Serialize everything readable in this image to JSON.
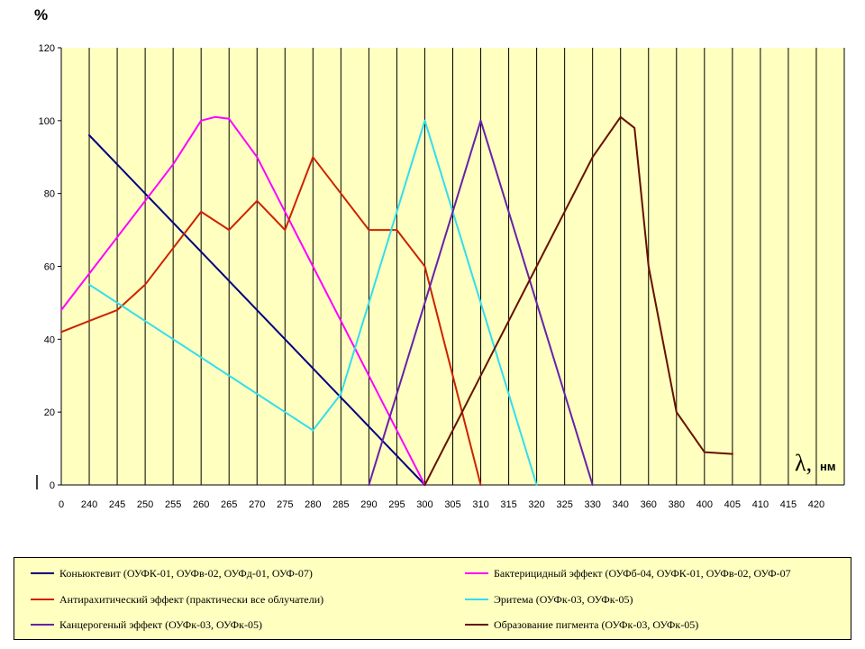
{
  "chart_data": {
    "type": "line",
    "ylabel": "%",
    "xlabel_symbol": "λ,",
    "xlabel_unit": "нм",
    "ylim": [
      0,
      120
    ],
    "yticks": [
      "0",
      "20",
      "40",
      "60",
      "80",
      "100",
      "120"
    ],
    "categories": [
      "0",
      "240",
      "245",
      "250",
      "255",
      "260",
      "265",
      "270",
      "275",
      "280",
      "285",
      "290",
      "295",
      "300",
      "305",
      "310",
      "315",
      "320",
      "325",
      "330",
      "340",
      "360",
      "380",
      "400",
      "405",
      "410",
      "415",
      "420"
    ],
    "grid": "vertical",
    "legend_position": "bottom",
    "background": "#ffffc0",
    "series": [
      {
        "name": "Коньюктевит (ОУФК-01, ОУФв-02, ОУФд-01, ОУФ-07)",
        "color": "#000080",
        "points": [
          [
            1,
            96
          ],
          [
            13,
            0
          ]
        ]
      },
      {
        "name": "Бактерицидный эффект (ОУФб-04, ОУФК-01, ОУФв-02, ОУФ-07",
        "color": "#ff00ff",
        "points": [
          [
            0,
            48
          ],
          [
            1,
            58
          ],
          [
            3,
            78
          ],
          [
            4,
            88
          ],
          [
            5,
            100
          ],
          [
            5.5,
            101
          ],
          [
            6,
            100.5
          ],
          [
            7,
            90
          ],
          [
            8,
            75
          ],
          [
            9,
            60
          ],
          [
            10,
            45
          ],
          [
            11,
            30
          ],
          [
            12,
            15
          ],
          [
            13,
            0
          ]
        ]
      },
      {
        "name": "Антирахитический эффект (практически все облучатели)",
        "color": "#cc2200",
        "points": [
          [
            0,
            42
          ],
          [
            1,
            45
          ],
          [
            2,
            48
          ],
          [
            3,
            55
          ],
          [
            4,
            65
          ],
          [
            5,
            75
          ],
          [
            6,
            70
          ],
          [
            7,
            78
          ],
          [
            8,
            70
          ],
          [
            9,
            90
          ],
          [
            10,
            80
          ],
          [
            11,
            70
          ],
          [
            12,
            70
          ],
          [
            13,
            60
          ],
          [
            15,
            0
          ]
        ]
      },
      {
        "name": "Эритема (ОУФк-03, ОУФк-05)",
        "color": "#33ddee",
        "points": [
          [
            1,
            55
          ],
          [
            4,
            40
          ],
          [
            7,
            25
          ],
          [
            8,
            20
          ],
          [
            9,
            15
          ],
          [
            10,
            25
          ],
          [
            11,
            50
          ],
          [
            12,
            75
          ],
          [
            13,
            100
          ],
          [
            15,
            50
          ],
          [
            17,
            0
          ]
        ]
      },
      {
        "name": "Канцерогеный эффект (ОУФк-03, ОУФк-05)",
        "color": "#6622aa",
        "points": [
          [
            11,
            0
          ],
          [
            13,
            50
          ],
          [
            15,
            100
          ],
          [
            17,
            50
          ],
          [
            19,
            0
          ]
        ]
      },
      {
        "name": "Образование пигмента (ОУФк-03, ОУФк-05)",
        "color": "#661100",
        "points": [
          [
            13,
            0
          ],
          [
            15,
            30
          ],
          [
            18,
            75
          ],
          [
            19,
            90
          ],
          [
            20,
            101
          ],
          [
            20.5,
            98
          ],
          [
            21,
            60
          ],
          [
            22,
            20
          ],
          [
            23,
            9
          ],
          [
            24,
            8.5
          ]
        ]
      }
    ]
  }
}
